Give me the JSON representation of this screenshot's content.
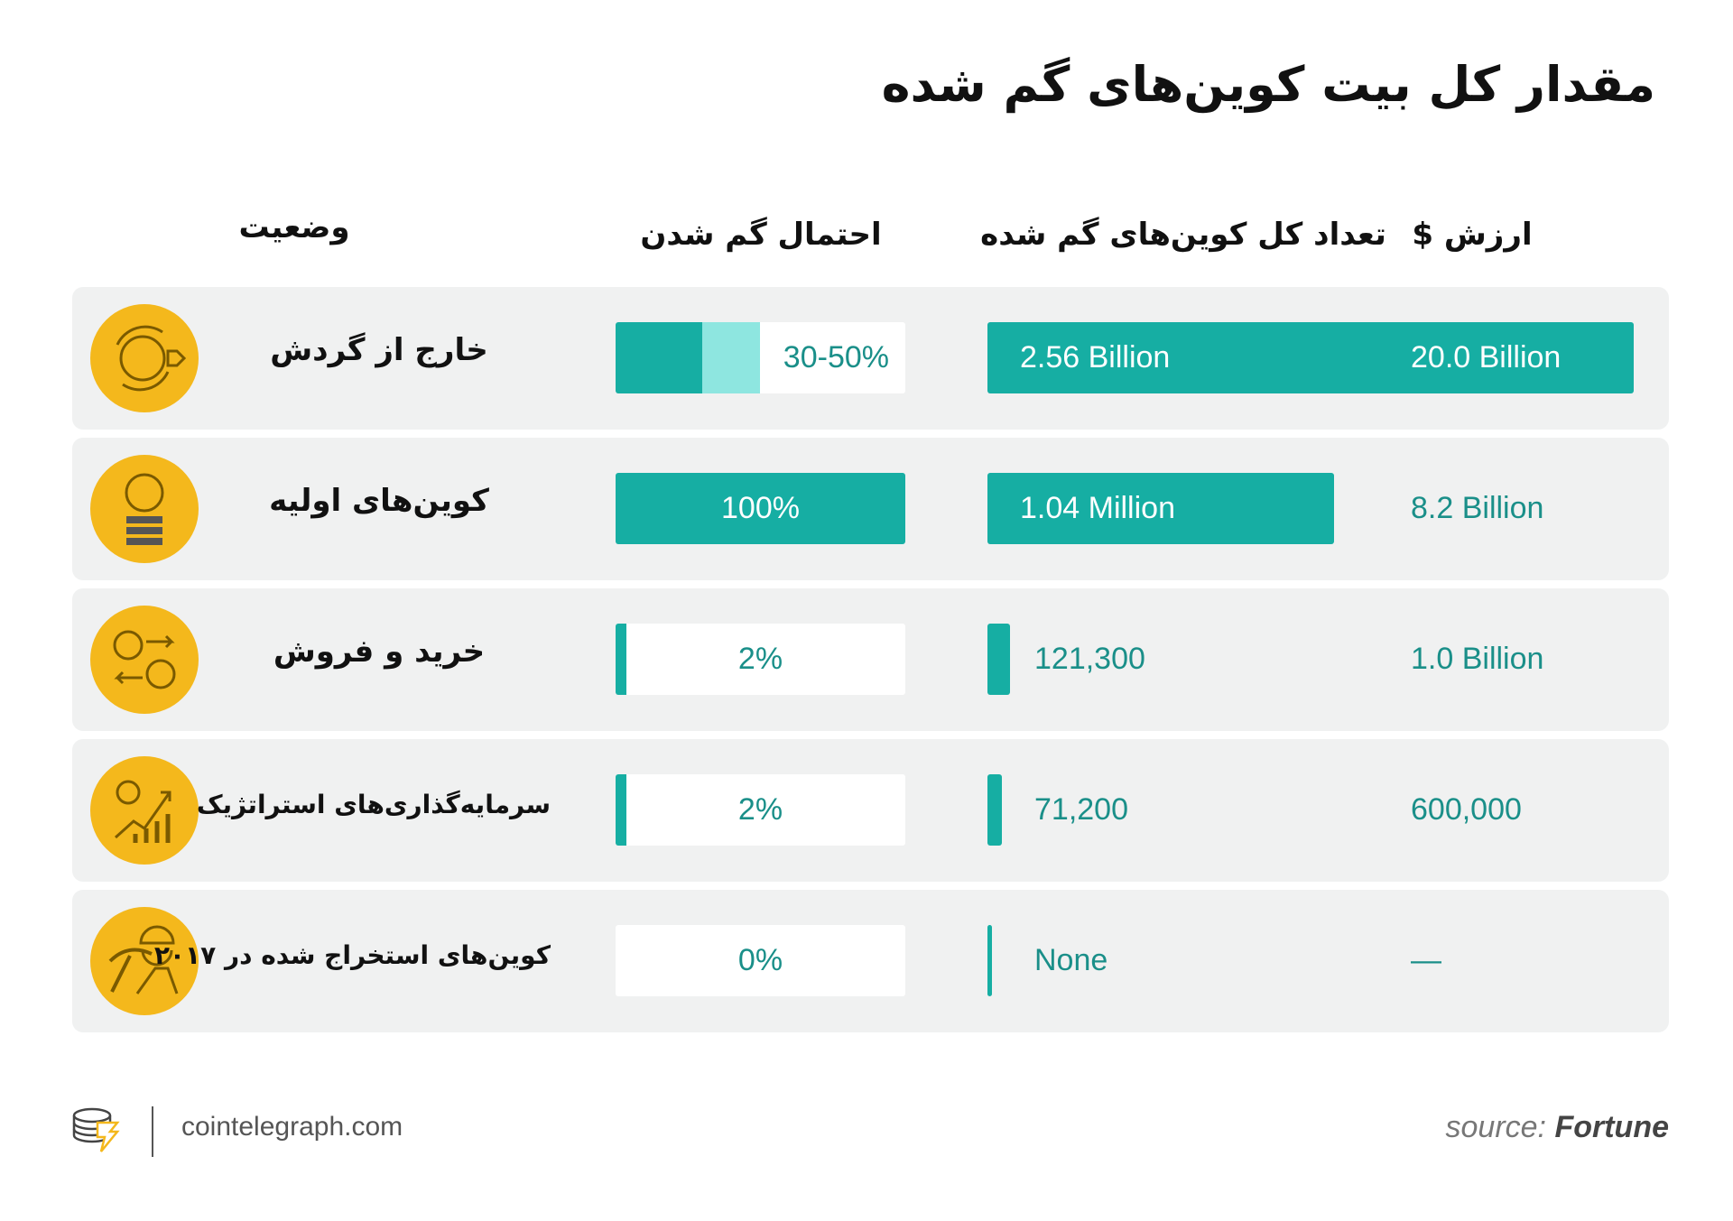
{
  "header": {
    "title": "مقدار کل بیت کوین‌های گم شده"
  },
  "table": {
    "columns": [
      "وضعیت",
      "احتمال گم شدن",
      "تعداد کل کوین‌های گم شده",
      "ارزش $"
    ],
    "rows": [
      [
        "خارج از گردش",
        "30-50%",
        "2.56 Billion",
        "20.0 Billion"
      ],
      [
        "کوین‌های اولیه",
        "100%",
        "1.04 Million",
        "8.2 Billion"
      ],
      [
        "خرید و فروش",
        "2%",
        "121,300",
        "1.0 Billion"
      ],
      [
        "سرمایه‌گذاری‌های استراتژیک",
        "2%",
        "71,200",
        "600,000"
      ],
      [
        "کوین‌های استخراج شده در ۲۰۱۷",
        "0%",
        "None",
        "—"
      ]
    ]
  },
  "footer": {
    "site": "cointelegraph.com",
    "source_label": "source:",
    "source": "Fortune"
  }
}
